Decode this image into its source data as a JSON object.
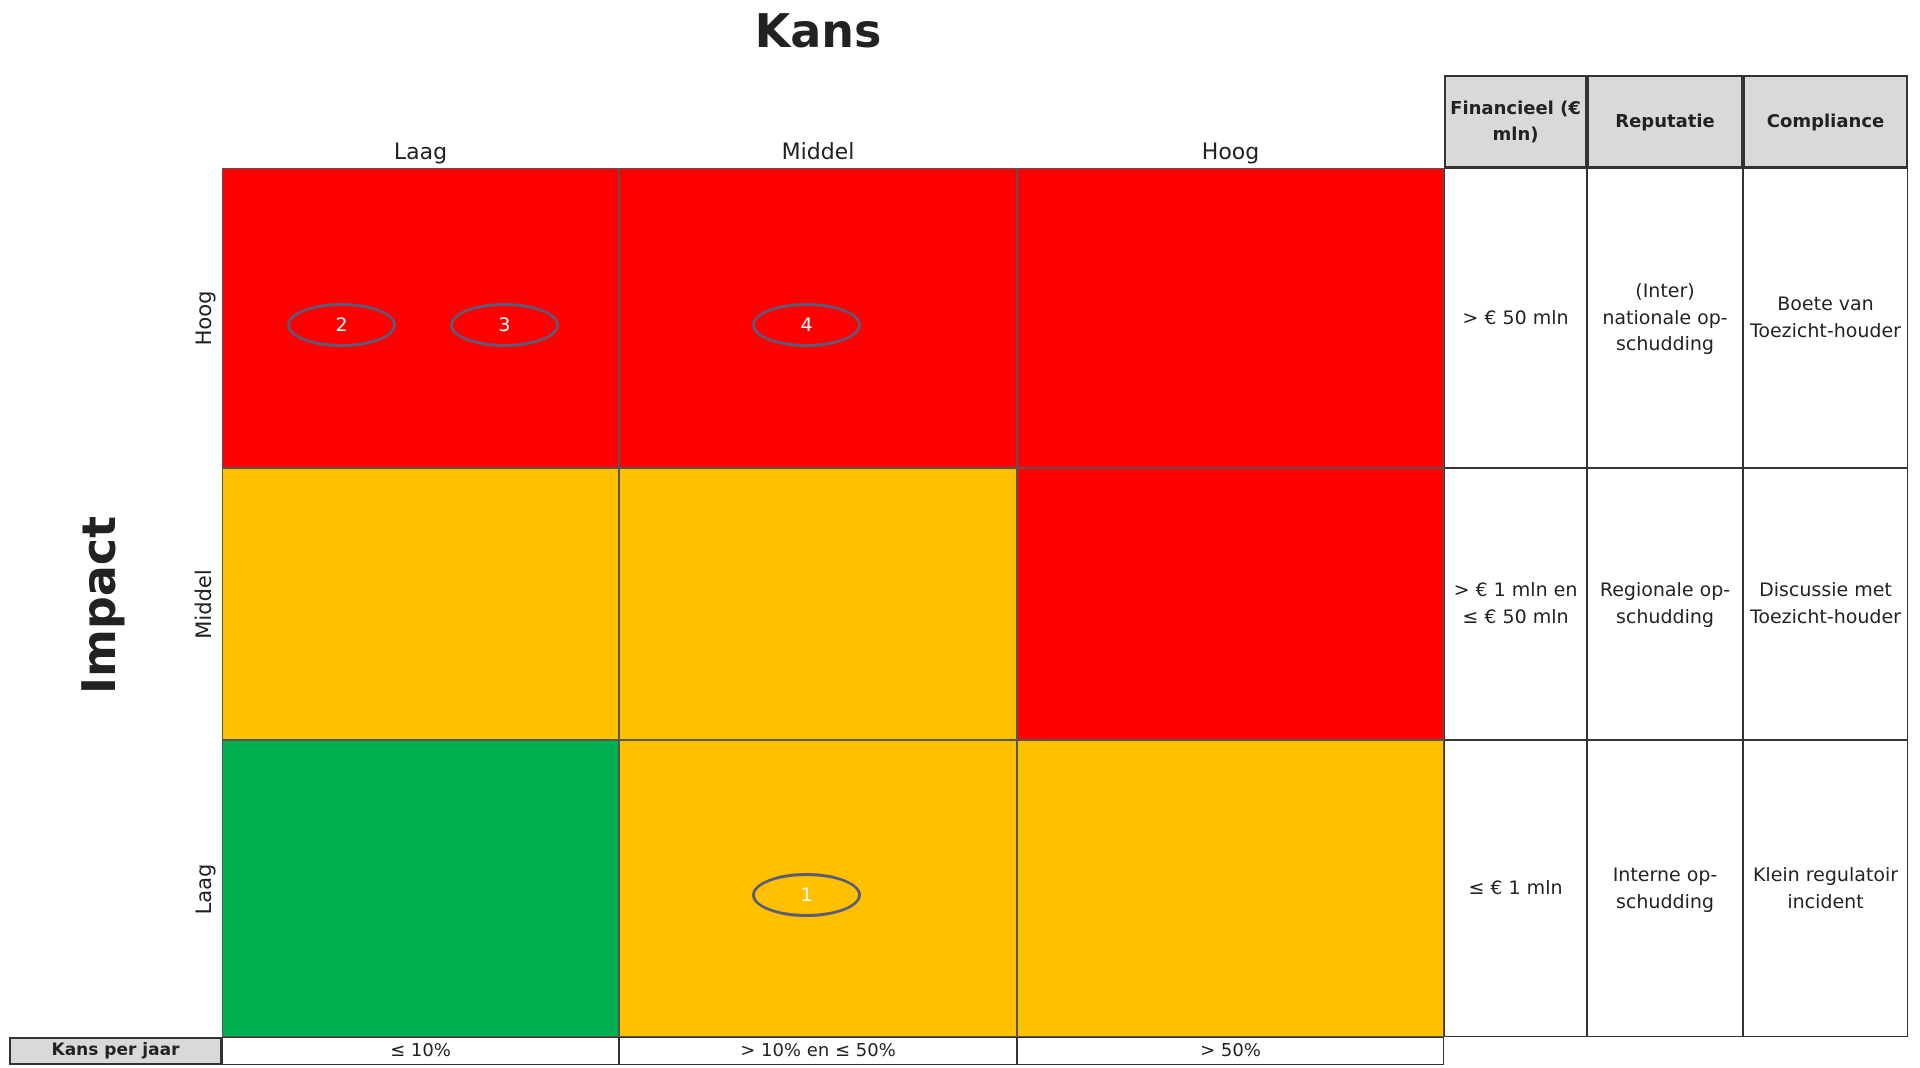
{
  "title": "Kans",
  "y_title": "Impact",
  "columns": [
    "Laag",
    "Middel",
    "Hoog"
  ],
  "rows": [
    "Hoog",
    "Middel",
    "Laag"
  ],
  "matrix": [
    [
      {
        "color": "#ff0000",
        "markers": [
          "2",
          "3"
        ]
      },
      {
        "color": "#ff0000",
        "markers": [
          "4"
        ]
      },
      {
        "color": "#ff0000",
        "markers": []
      }
    ],
    [
      {
        "color": "#ffc000",
        "markers": []
      },
      {
        "color": "#ffc000",
        "markers": []
      },
      {
        "color": "#ff0000",
        "markers": []
      }
    ],
    [
      {
        "color": "#00b050",
        "markers": []
      },
      {
        "color": "#ffc000",
        "markers": [
          "1"
        ]
      },
      {
        "color": "#ffc000",
        "markers": []
      }
    ]
  ],
  "impact_table": {
    "headers": [
      "Financieel (€ mln)",
      "Reputatie",
      "Compliance"
    ],
    "rows": [
      [
        "> € 50 mln",
        "(Inter) nationale op-schudding",
        "Boete van Toezicht-houder"
      ],
      [
        "> € 1 mln en ≤ € 50 mln",
        "Regionale op-schudding",
        "Discussie met Toezicht-houder"
      ],
      [
        "≤ € 1 mln",
        "Interne op-schudding",
        "Klein regulatoir incident"
      ]
    ]
  },
  "probability_row": {
    "label": "Kans per jaar",
    "values": [
      "≤ 10%",
      "> 10% en ≤ 50%",
      "> 50%"
    ]
  }
}
